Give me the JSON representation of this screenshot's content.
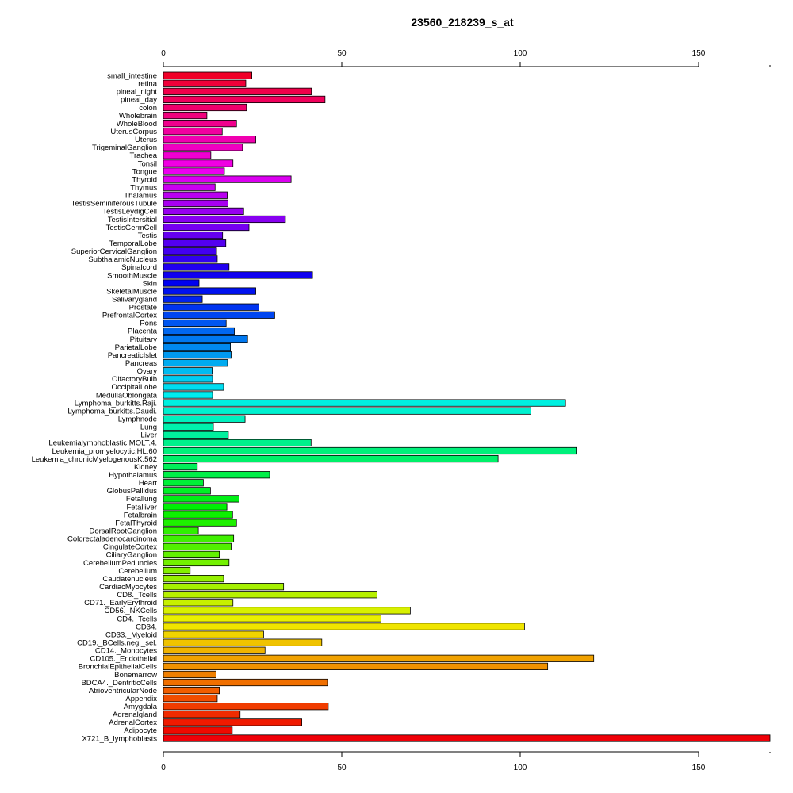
{
  "chart_data": {
    "type": "bar",
    "orientation": "horizontal",
    "title": "23560_218239_s_at",
    "xlabel": "",
    "ylabel": "",
    "xlim": [
      0,
      170
    ],
    "x_ticks": [
      0,
      50,
      100,
      150
    ],
    "x_tick_labels": [
      "0",
      "50",
      "100",
      "150"
    ],
    "axes_top_and_bottom": true,
    "grid": false,
    "bar_colors": "rainbow gradient from red (top) through magenta, blue, cyan, green, yellow, orange back to red (bottom)",
    "categories": [
      "small_intestine",
      "retina",
      "pineal_night",
      "pineal_day",
      "colon",
      "Wholebrain",
      "WholeBlood",
      "UterusCorpus",
      "Uterus",
      "TrigeminalGanglion",
      "Trachea",
      "Tonsil",
      "Tongue",
      "Thyroid",
      "Thymus",
      "Thalamus",
      "TestisSeminiferousTubule",
      "TestisLeydigCell",
      "TestisIntersitial",
      "TestisGermCell",
      "Testis",
      "TemporalLobe",
      "SuperiorCervicalGanglion",
      "SubthalamicNucleus",
      "Spinalcord",
      "SmoothMuscle",
      "Skin",
      "SkeletalMuscle",
      "Salivarygland",
      "Prostate",
      "PrefrontalCortex",
      "Pons",
      "Placenta",
      "Pituitary",
      "ParietalLobe",
      "PancreaticIslet",
      "Pancreas",
      "Ovary",
      "OlfactoryBulb",
      "OccipitalLobe",
      "MedullaOblongata",
      "Lymphoma_burkitts.Raji.",
      "Lymphoma_burkitts.Daudi.",
      "Lymphnode",
      "Lung",
      "Liver",
      "Leukemialymphoblastic.MOLT.4.",
      "Leukemia_promyelocytic.HL.60",
      "Leukemia_chronicMyelogenousK.562",
      "Kidney",
      "Hypothalamus",
      "Heart",
      "GlobusPallidus",
      "Fetallung",
      "Fetalliver",
      "Fetalbrain",
      "FetalThyroid",
      "DorsalRootGanglion",
      "Colorectaladenocarcinoma",
      "CingulateCortex",
      "CiliaryGanglion",
      "CerebellumPeduncles",
      "Cerebellum",
      "Caudatenucleus",
      "CardiacMyocytes",
      "CD8._Tcells",
      "CD71._EarlyErythroid",
      "CD56._NKCells",
      "CD4._Tcells",
      "CD34.",
      "CD33._Myeloid",
      "CD19._BCells.neg._sel.",
      "CD14._Monocytes",
      "CD105._Endothelial",
      "BronchialEpithelialCells",
      "Bonemarrow",
      "BDCA4._DentriticCells",
      "AtrioventricularNode",
      "Appendix",
      "Amygdala",
      "Adrenalgland",
      "AdrenalCortex",
      "Adipocyte",
      "X721_B_lymphoblasts"
    ],
    "values": [
      24.8,
      23.1,
      41.5,
      45.3,
      23.3,
      12.2,
      20.5,
      16.5,
      25.9,
      22.2,
      13.3,
      19.5,
      17.1,
      35.8,
      14.5,
      17.9,
      18.1,
      22.5,
      34.2,
      24.0,
      16.6,
      17.5,
      14.9,
      15.1,
      18.4,
      41.8,
      10.0,
      25.9,
      10.9,
      26.8,
      31.2,
      17.6,
      19.9,
      23.6,
      18.8,
      19.0,
      18.0,
      13.7,
      13.8,
      16.9,
      13.8,
      112.7,
      103.0,
      22.9,
      14.0,
      18.2,
      41.4,
      115.7,
      93.8,
      9.5,
      29.8,
      11.2,
      13.2,
      21.2,
      17.8,
      19.4,
      20.5,
      9.8,
      19.7,
      19.0,
      15.7,
      18.4,
      7.5,
      16.9,
      33.7,
      59.9,
      19.5,
      69.2,
      61.0,
      101.2,
      28.1,
      44.4,
      28.5,
      120.6,
      107.7,
      14.8,
      46.0,
      15.7,
      15.1,
      46.2,
      21.5,
      38.8,
      19.3,
      170.0
    ]
  }
}
